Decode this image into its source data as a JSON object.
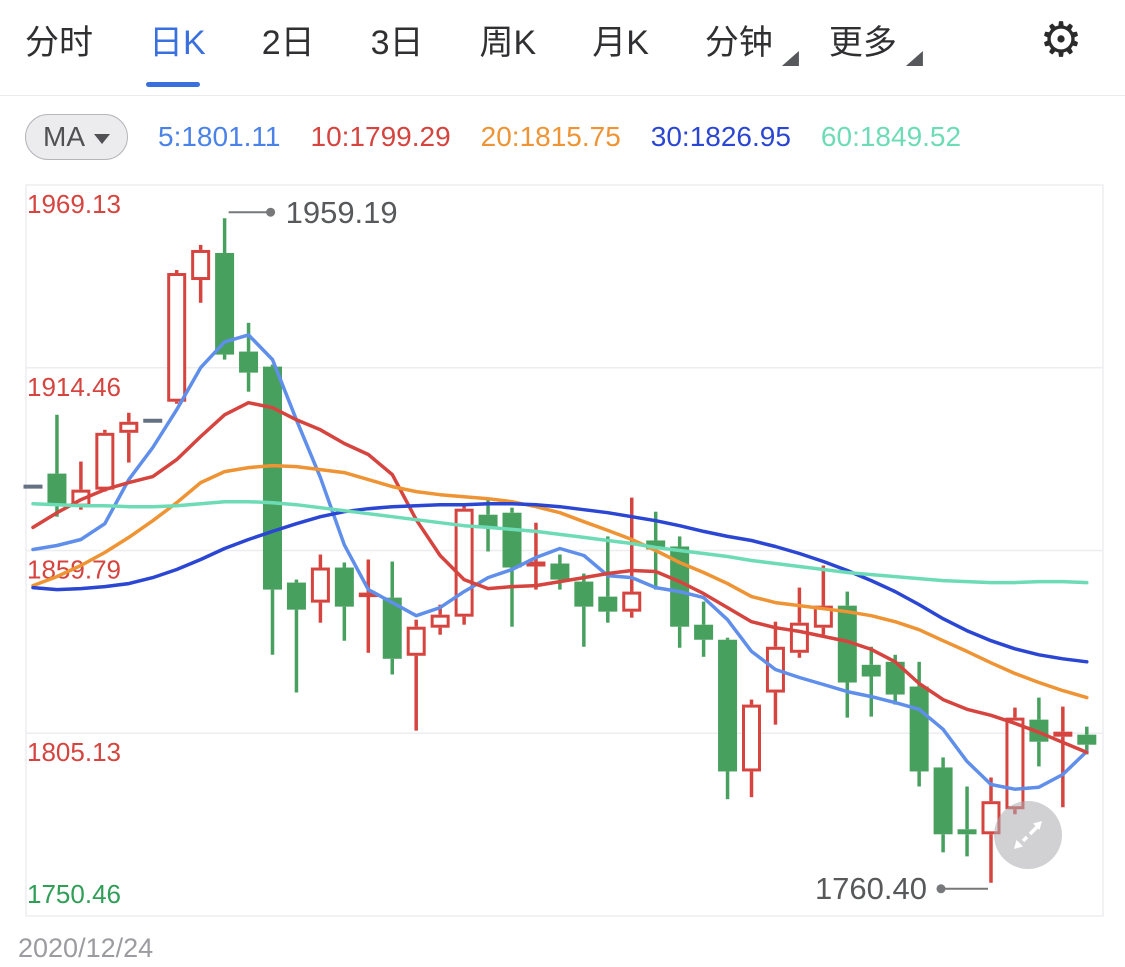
{
  "header": {
    "tabs": [
      {
        "label": "分时",
        "active": false,
        "caret": false
      },
      {
        "label": "日K",
        "active": true,
        "caret": false
      },
      {
        "label": "2日",
        "active": false,
        "caret": false
      },
      {
        "label": "3日",
        "active": false,
        "caret": false
      },
      {
        "label": "周K",
        "active": false,
        "caret": false
      },
      {
        "label": "月K",
        "active": false,
        "caret": false
      },
      {
        "label": "分钟",
        "active": false,
        "caret": true
      },
      {
        "label": "更多",
        "active": false,
        "caret": true
      }
    ],
    "gear_icon": "settings-gear-icon",
    "gear_glyph": "⚙"
  },
  "ma_bar": {
    "button_label": "MA",
    "items": [
      {
        "label": "5:1801.11",
        "color": "#4a82e8"
      },
      {
        "label": "10:1799.29",
        "color": "#d5443e"
      },
      {
        "label": "20:1815.75",
        "color": "#ee9434"
      },
      {
        "label": "30:1826.95",
        "color": "#2a46d2"
      },
      {
        "label": "60:1849.52",
        "color": "#6ddcb6"
      }
    ]
  },
  "chart_data": {
    "type": "candlestick",
    "title": "",
    "xlabel": "2020/12/24",
    "axis": {
      "top": 1969.13,
      "bottom": 1750.46,
      "gridlines": [
        1969.13,
        1914.46,
        1859.79,
        1805.13,
        1750.46
      ]
    },
    "ylabels": [
      {
        "text": "1969.13",
        "color": "#d5443e",
        "position": "below"
      },
      {
        "text": "1914.46",
        "color": "#d5443e",
        "position": "below"
      },
      {
        "text": "1859.79",
        "color": "#d5443e",
        "position": "below"
      },
      {
        "text": "1805.13",
        "color": "#d5443e",
        "position": "below"
      },
      {
        "text": "1750.46",
        "color": "#2f9e57",
        "position": "above"
      }
    ],
    "annotations": {
      "high": {
        "text": "1959.19",
        "candle": 8
      },
      "low": {
        "text": "1760.40",
        "candle": 40
      }
    },
    "colors": {
      "up": "#d5443e",
      "down": "#48a05f",
      "flat": "#667083",
      "grid": "#ededf0",
      "annotation_line": "#77787a",
      "annotation_text": "#58595b"
    },
    "candles": [
      {
        "t": "f",
        "o": 1878.9,
        "h": 1878.9,
        "l": 1878.9,
        "c": 1878.9
      },
      {
        "t": "d",
        "o": 1882.8,
        "h": 1900.4,
        "l": 1869.9,
        "c": 1873.5
      },
      {
        "t": "u",
        "o": 1872.9,
        "h": 1886.4,
        "l": 1872.0,
        "c": 1878.0
      },
      {
        "t": "u",
        "o": 1878.0,
        "h": 1895.9,
        "l": 1877.4,
        "c": 1895.0
      },
      {
        "t": "u",
        "o": 1895.0,
        "h": 1901.0,
        "l": 1886.1,
        "c": 1898.3
      },
      {
        "t": "f",
        "o": 1898.6,
        "h": 1898.6,
        "l": 1898.6,
        "c": 1898.6
      },
      {
        "t": "u",
        "o": 1904.3,
        "h": 1943.7,
        "l": 1903.7,
        "c": 1942.8
      },
      {
        "t": "u",
        "o": 1940.7,
        "h": 1951.2,
        "l": 1933.9,
        "c": 1949.7
      },
      {
        "t": "d",
        "o": 1948.8,
        "h": 1959.19,
        "l": 1916.9,
        "c": 1918.4
      },
      {
        "t": "d",
        "o": 1919.3,
        "h": 1927.9,
        "l": 1907.3,
        "c": 1913.0
      },
      {
        "t": "d",
        "o": 1914.8,
        "h": 1915.4,
        "l": 1828.6,
        "c": 1848.1
      },
      {
        "t": "d",
        "o": 1850.2,
        "h": 1851.1,
        "l": 1817.3,
        "c": 1842.1
      },
      {
        "t": "u",
        "o": 1844.2,
        "h": 1858.6,
        "l": 1838.2,
        "c": 1854.7
      },
      {
        "t": "d",
        "o": 1854.7,
        "h": 1856.2,
        "l": 1832.8,
        "c": 1843.0
      },
      {
        "t": "u",
        "o": 1846.0,
        "h": 1857.1,
        "l": 1829.2,
        "c": 1847.2
      },
      {
        "t": "d",
        "o": 1845.7,
        "h": 1856.5,
        "l": 1822.7,
        "c": 1827.4
      },
      {
        "t": "u",
        "o": 1828.3,
        "h": 1839.1,
        "l": 1805.9,
        "c": 1837.0
      },
      {
        "t": "u",
        "o": 1836.7,
        "h": 1843.6,
        "l": 1834.6,
        "c": 1840.6
      },
      {
        "t": "u",
        "o": 1840.0,
        "h": 1873.5,
        "l": 1837.6,
        "c": 1872.3
      },
      {
        "t": "d",
        "o": 1870.5,
        "h": 1875.0,
        "l": 1859.5,
        "c": 1866.9
      },
      {
        "t": "d",
        "o": 1871.1,
        "h": 1872.6,
        "l": 1837.0,
        "c": 1854.7
      },
      {
        "t": "u",
        "o": 1855.0,
        "h": 1868.1,
        "l": 1848.1,
        "c": 1856.5
      },
      {
        "t": "d",
        "o": 1855.9,
        "h": 1858.6,
        "l": 1848.1,
        "c": 1851.1
      },
      {
        "t": "d",
        "o": 1850.5,
        "h": 1852.9,
        "l": 1831.0,
        "c": 1843.0
      },
      {
        "t": "d",
        "o": 1846.0,
        "h": 1864.0,
        "l": 1838.2,
        "c": 1841.5
      },
      {
        "t": "u",
        "o": 1841.5,
        "h": 1875.6,
        "l": 1839.7,
        "c": 1847.5
      },
      {
        "t": "d",
        "o": 1862.8,
        "h": 1871.4,
        "l": 1848.1,
        "c": 1860.1
      },
      {
        "t": "d",
        "o": 1861.0,
        "h": 1864.0,
        "l": 1830.7,
        "c": 1837.0
      },
      {
        "t": "d",
        "o": 1837.6,
        "h": 1844.5,
        "l": 1828.0,
        "c": 1833.1
      },
      {
        "t": "d",
        "o": 1833.1,
        "h": 1833.7,
        "l": 1785.4,
        "c": 1793.7
      },
      {
        "t": "u",
        "o": 1793.7,
        "h": 1815.2,
        "l": 1786.0,
        "c": 1813.7
      },
      {
        "t": "u",
        "o": 1817.3,
        "h": 1838.5,
        "l": 1807.7,
        "c": 1831.0
      },
      {
        "t": "u",
        "o": 1829.2,
        "h": 1848.7,
        "l": 1827.7,
        "c": 1838.2
      },
      {
        "t": "u",
        "o": 1836.7,
        "h": 1855.3,
        "l": 1834.6,
        "c": 1843.3
      },
      {
        "t": "d",
        "o": 1843.3,
        "h": 1847.5,
        "l": 1809.8,
        "c": 1820.3
      },
      {
        "t": "d",
        "o": 1825.6,
        "h": 1831.0,
        "l": 1810.1,
        "c": 1822.1
      },
      {
        "t": "d",
        "o": 1826.5,
        "h": 1828.6,
        "l": 1813.7,
        "c": 1816.7
      },
      {
        "t": "d",
        "o": 1819.1,
        "h": 1826.5,
        "l": 1789.2,
        "c": 1793.7
      },
      {
        "t": "d",
        "o": 1794.9,
        "h": 1797.9,
        "l": 1769.5,
        "c": 1774.9
      },
      {
        "t": "d",
        "o": 1776.4,
        "h": 1789.2,
        "l": 1768.3,
        "c": 1774.9
      },
      {
        "t": "u",
        "o": 1774.9,
        "h": 1791.9,
        "l": 1760.4,
        "c": 1784.8
      },
      {
        "t": "u",
        "o": 1782.4,
        "h": 1812.8,
        "l": 1780.9,
        "c": 1809.8
      },
      {
        "t": "d",
        "o": 1809.2,
        "h": 1815.8,
        "l": 1795.2,
        "c": 1802.6
      },
      {
        "t": "u",
        "o": 1804.1,
        "h": 1813.1,
        "l": 1783.0,
        "c": 1805.6
      },
      {
        "t": "d",
        "o": 1804.7,
        "h": 1807.1,
        "l": 1798.8,
        "c": 1801.7
      }
    ],
    "ma_series": [
      {
        "name": "MA5",
        "color": "#5f8fea",
        "values": [
          1860.1,
          1861.3,
          1863.1,
          1867.8,
          1881.0,
          1890.6,
          1901.9,
          1914.5,
          1922.2,
          1924.3,
          1916.9,
          1898.9,
          1881.6,
          1861.5,
          1848.1,
          1844.2,
          1840.3,
          1842.7,
          1847.5,
          1851.7,
          1854.1,
          1857.7,
          1860.4,
          1858.3,
          1852.3,
          1851.7,
          1848.7,
          1847.5,
          1845.7,
          1839.1,
          1829.6,
          1824.2,
          1821.8,
          1819.7,
          1817.6,
          1816.1,
          1814.3,
          1812.3,
          1806.3,
          1796.7,
          1789.8,
          1788.4,
          1789.0,
          1792.8,
          1799.7
        ]
      },
      {
        "name": "MA10",
        "color": "#d5443e",
        "values": [
          1866.7,
          1871.1,
          1875.0,
          1878.0,
          1880.1,
          1881.9,
          1887.0,
          1893.9,
          1900.4,
          1904.0,
          1902.5,
          1898.9,
          1895.9,
          1891.8,
          1888.5,
          1882.5,
          1869.0,
          1858.3,
          1851.1,
          1848.4,
          1849.0,
          1849.3,
          1850.5,
          1851.7,
          1852.9,
          1853.8,
          1853.5,
          1850.5,
          1846.9,
          1842.7,
          1838.5,
          1836.7,
          1835.6,
          1834.1,
          1832.6,
          1830.2,
          1826.5,
          1820.0,
          1815.2,
          1812.3,
          1810.5,
          1808.1,
          1805.4,
          1802.4,
          1799.4
        ]
      },
      {
        "name": "MA20",
        "color": "#ee9434",
        "values": [
          1849.3,
          1852.0,
          1855.3,
          1859.2,
          1863.7,
          1868.7,
          1874.1,
          1880.1,
          1883.4,
          1884.6,
          1885.2,
          1884.9,
          1884.0,
          1883.1,
          1881.0,
          1878.9,
          1877.4,
          1876.5,
          1875.9,
          1875.3,
          1874.4,
          1872.9,
          1871.1,
          1868.4,
          1865.8,
          1863.1,
          1859.8,
          1856.2,
          1853.2,
          1849.9,
          1846.0,
          1844.2,
          1843.3,
          1842.4,
          1841.5,
          1840.3,
          1838.5,
          1836.1,
          1832.8,
          1829.6,
          1826.2,
          1823.0,
          1820.3,
          1817.9,
          1815.8
        ]
      },
      {
        "name": "MA30",
        "color": "#2a46d2",
        "values": [
          1848.7,
          1848.1,
          1848.4,
          1849.0,
          1849.9,
          1851.7,
          1854.1,
          1857.1,
          1860.4,
          1863.1,
          1865.5,
          1867.8,
          1869.9,
          1871.4,
          1872.3,
          1872.9,
          1873.2,
          1873.5,
          1873.5,
          1873.8,
          1873.8,
          1873.5,
          1872.9,
          1872.0,
          1871.1,
          1869.9,
          1868.7,
          1867.2,
          1865.5,
          1864.0,
          1862.8,
          1861.0,
          1858.9,
          1856.5,
          1853.8,
          1850.8,
          1847.5,
          1843.6,
          1839.4,
          1835.8,
          1832.8,
          1830.4,
          1828.6,
          1827.4,
          1826.5
        ]
      },
      {
        "name": "MA60",
        "color": "#6ddcb6",
        "values": [
          1873.8,
          1873.5,
          1873.2,
          1873.2,
          1872.9,
          1872.9,
          1873.2,
          1873.8,
          1874.4,
          1874.4,
          1874.1,
          1873.5,
          1872.6,
          1871.7,
          1870.8,
          1869.9,
          1869.0,
          1868.1,
          1867.2,
          1866.7,
          1866.1,
          1865.5,
          1864.6,
          1863.7,
          1862.8,
          1861.9,
          1860.7,
          1859.8,
          1858.9,
          1858.0,
          1856.8,
          1855.9,
          1855.0,
          1854.1,
          1853.2,
          1852.6,
          1852.0,
          1851.4,
          1850.8,
          1850.5,
          1850.2,
          1850.2,
          1850.5,
          1850.5,
          1850.2
        ]
      }
    ]
  }
}
